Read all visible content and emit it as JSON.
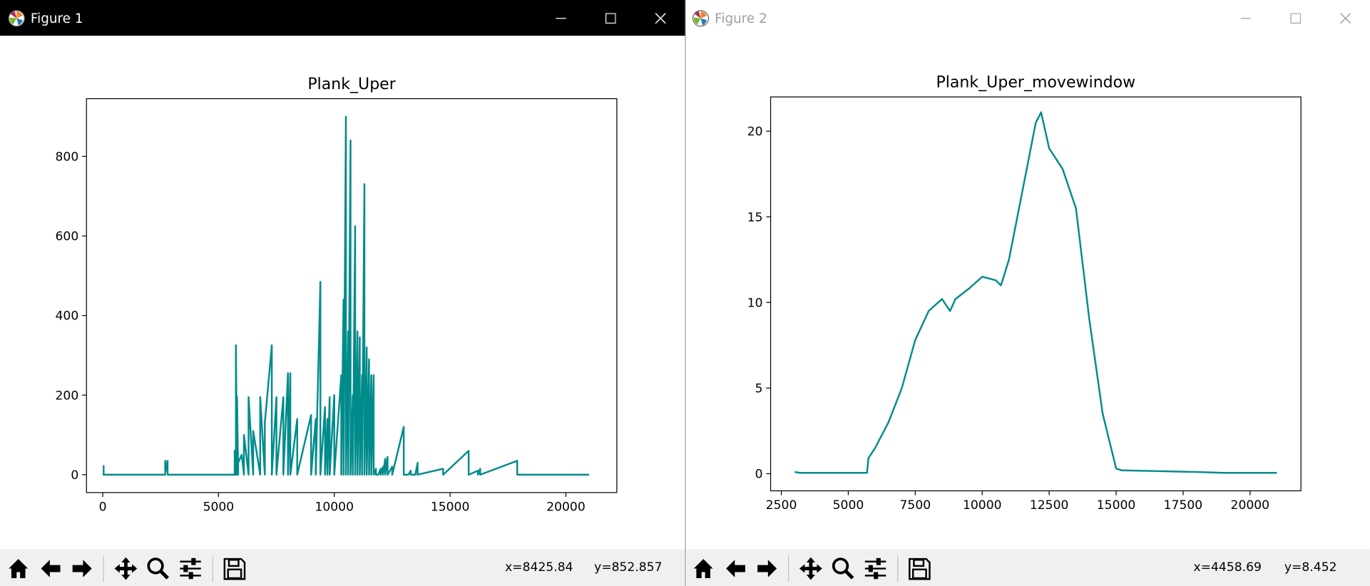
{
  "windows": [
    {
      "title": "Figure 1",
      "coords": {
        "x": "x=8425.84",
        "y": "y=852.857"
      },
      "toolbar": [
        "home-icon",
        "back-arrow-icon",
        "forward-arrow-icon",
        "pan-icon",
        "zoom-icon",
        "configure-subplots-icon",
        "save-icon"
      ]
    },
    {
      "title": "Figure 2",
      "coords": {
        "x": "x=4458.69",
        "y": "y=8.452"
      },
      "toolbar": [
        "home-icon",
        "back-arrow-icon",
        "forward-arrow-icon",
        "pan-icon",
        "zoom-icon",
        "configure-subplots-icon",
        "save-icon"
      ]
    }
  ],
  "colors": {
    "line": "#008b8b",
    "active_titlebar": "#000000",
    "inactive_title_text": "#a0a0a0",
    "toolbar_bg": "#f0f0f0"
  },
  "chart_data": [
    {
      "type": "line",
      "title": "Plank_Uper",
      "xlabel": "",
      "ylabel": "",
      "xlim": [
        -700,
        22200
      ],
      "ylim": [
        -45,
        945
      ],
      "xticks": [
        0,
        5000,
        10000,
        15000,
        20000
      ],
      "xtick_labels": [
        "0",
        "5000",
        "10000",
        "15000",
        "20000"
      ],
      "yticks": [
        0,
        200,
        400,
        600,
        800
      ],
      "ytick_labels": [
        "0",
        "200",
        "400",
        "600",
        "800"
      ],
      "grid": false,
      "series": [
        {
          "x": [
            0,
            40,
            40,
            40,
            2700,
            2700,
            2750,
            2800,
            2800,
            5700,
            5700,
            5750,
            5750,
            5800,
            5800,
            5850,
            5850,
            6000,
            6100,
            6100,
            6300,
            6300,
            6500,
            6500,
            6800,
            6800,
            7000,
            7000,
            7300,
            7300,
            7500,
            7500,
            7800,
            7800,
            8000,
            8000,
            8100,
            8100,
            8400,
            8400,
            9000,
            9000,
            9200,
            9200,
            9400,
            9400,
            9600,
            9600,
            9700,
            9700,
            9800,
            9800,
            10000,
            10000,
            10300,
            10300,
            10400,
            10400,
            10500,
            10500,
            10600,
            10600,
            10700,
            10700,
            10800,
            10800,
            10900,
            10900,
            11000,
            11000,
            11100,
            11100,
            11200,
            11200,
            11300,
            11300,
            11400,
            11400,
            11500,
            11500,
            11600,
            11600,
            11700,
            11700,
            11800,
            11800,
            11900,
            11900,
            12000,
            12000,
            12100,
            12100,
            12200,
            12200,
            12300,
            12300,
            12500,
            12500,
            13000,
            13000,
            13200,
            13200,
            13300,
            13300,
            13500,
            13500,
            13600,
            13600,
            14700,
            14700,
            15800,
            15800,
            16200,
            16200,
            16300,
            16300,
            17900,
            17900,
            18300,
            18300,
            19500,
            19500,
            21000
          ],
          "y": [
            0,
            0,
            22,
            0,
            0,
            35,
            10,
            35,
            0,
            0,
            60,
            0,
            325,
            0,
            195,
            0,
            30,
            50,
            0,
            100,
            0,
            195,
            0,
            110,
            0,
            195,
            0,
            130,
            325,
            0,
            195,
            0,
            195,
            0,
            255,
            0,
            255,
            0,
            140,
            0,
            150,
            0,
            140,
            0,
            485,
            0,
            170,
            0,
            140,
            0,
            195,
            0,
            200,
            0,
            250,
            0,
            440,
            0,
            900,
            0,
            360,
            0,
            840,
            0,
            200,
            0,
            625,
            0,
            360,
            0,
            345,
            0,
            250,
            0,
            730,
            0,
            320,
            0,
            290,
            0,
            250,
            0,
            250,
            0,
            15,
            0,
            0,
            0,
            15,
            0,
            20,
            0,
            40,
            0,
            45,
            0,
            20,
            0,
            120,
            0,
            0,
            0,
            10,
            0,
            0,
            0,
            30,
            0,
            15,
            0,
            60,
            0,
            10,
            0,
            15,
            0,
            35,
            0,
            0,
            0,
            0,
            0,
            0
          ]
        }
      ]
    },
    {
      "type": "line",
      "title": "Plank_Uper_movewindow",
      "xlabel": "",
      "ylabel": "",
      "xlim": [
        2100,
        21900
      ],
      "ylim": [
        -1,
        22
      ],
      "xticks": [
        2500,
        5000,
        7500,
        10000,
        12500,
        15000,
        17500,
        20000
      ],
      "xtick_labels": [
        "2500",
        "5000",
        "7500",
        "10000",
        "12500",
        "15000",
        "17500",
        "20000"
      ],
      "yticks": [
        0,
        5,
        10,
        15,
        20
      ],
      "ytick_labels": [
        "0",
        "5",
        "10",
        "15",
        "20"
      ],
      "grid": false,
      "series": [
        {
          "x": [
            3000,
            3200,
            5700,
            5750,
            6000,
            6500,
            7000,
            7500,
            8000,
            8500,
            8800,
            9000,
            9500,
            10000,
            10500,
            10700,
            11000,
            11500,
            12000,
            12200,
            12500,
            13000,
            13500,
            14000,
            14500,
            15000,
            15200,
            16500,
            18000,
            19000,
            21000
          ],
          "y": [
            0.1,
            0.05,
            0.05,
            0.9,
            1.5,
            3.0,
            5.0,
            7.8,
            9.5,
            10.2,
            9.5,
            10.2,
            10.8,
            11.5,
            11.3,
            11.0,
            12.5,
            16.5,
            20.5,
            21.1,
            19.0,
            17.8,
            15.5,
            9.0,
            3.5,
            0.3,
            0.2,
            0.15,
            0.1,
            0.05,
            0.05
          ]
        }
      ]
    }
  ]
}
